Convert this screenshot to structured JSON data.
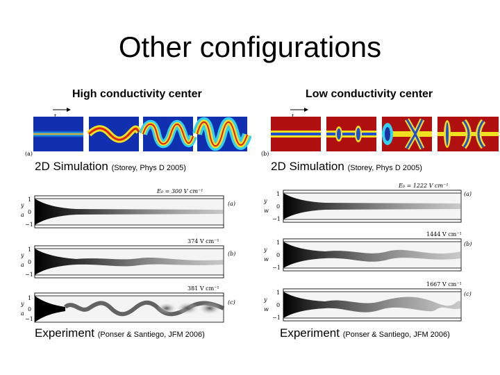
{
  "title": "Other configurations",
  "left_column": {
    "heading": "High conductivity center",
    "sim_caption_main": "2D Simulation",
    "sim_caption_small": "(Storey, Phys D 2005)",
    "sim_panel_label": "(a)",
    "sim_arrow_label": "t",
    "exp_caption_main": "Experiment",
    "exp_caption_small": "(Ponser & Santiego, JFM 2006)",
    "exp_panels": [
      {
        "label": "(a)",
        "field": "E₀ = 300 V cm⁻¹"
      },
      {
        "label": "(b)",
        "field": "374 V cm⁻¹"
      },
      {
        "label": "(c)",
        "field": "381 V cm⁻¹"
      }
    ],
    "y_ticks": [
      "1",
      "0",
      "−1"
    ],
    "y_axis_top": "y",
    "y_axis_bottom": "a"
  },
  "right_column": {
    "heading": "Low conductivity center",
    "sim_caption_main": "2D Simulation",
    "sim_caption_small": "(Storey, Phys D 2005)",
    "sim_panel_label": "(b)",
    "sim_arrow_label": "t",
    "exp_caption_main": "Experiment",
    "exp_caption_small": "(Ponser & Santiego, JFM 2006)",
    "exp_panels": [
      {
        "label": "(a)",
        "field": "E₀ = 1222 V cm⁻¹"
      },
      {
        "label": "(b)",
        "field": "1444 V cm⁻¹"
      },
      {
        "label": "(c)",
        "field": "1667 V cm⁻¹"
      }
    ],
    "y_ticks": [
      "1",
      "0",
      "−1"
    ],
    "y_axis_top": "y",
    "y_axis_bottom": "w"
  },
  "colors": {
    "sim_left_background": "#1030b0",
    "sim_right_background": "#b01010",
    "interface_yellow": "#f0e020",
    "interface_cyan": "#30d0f0"
  }
}
